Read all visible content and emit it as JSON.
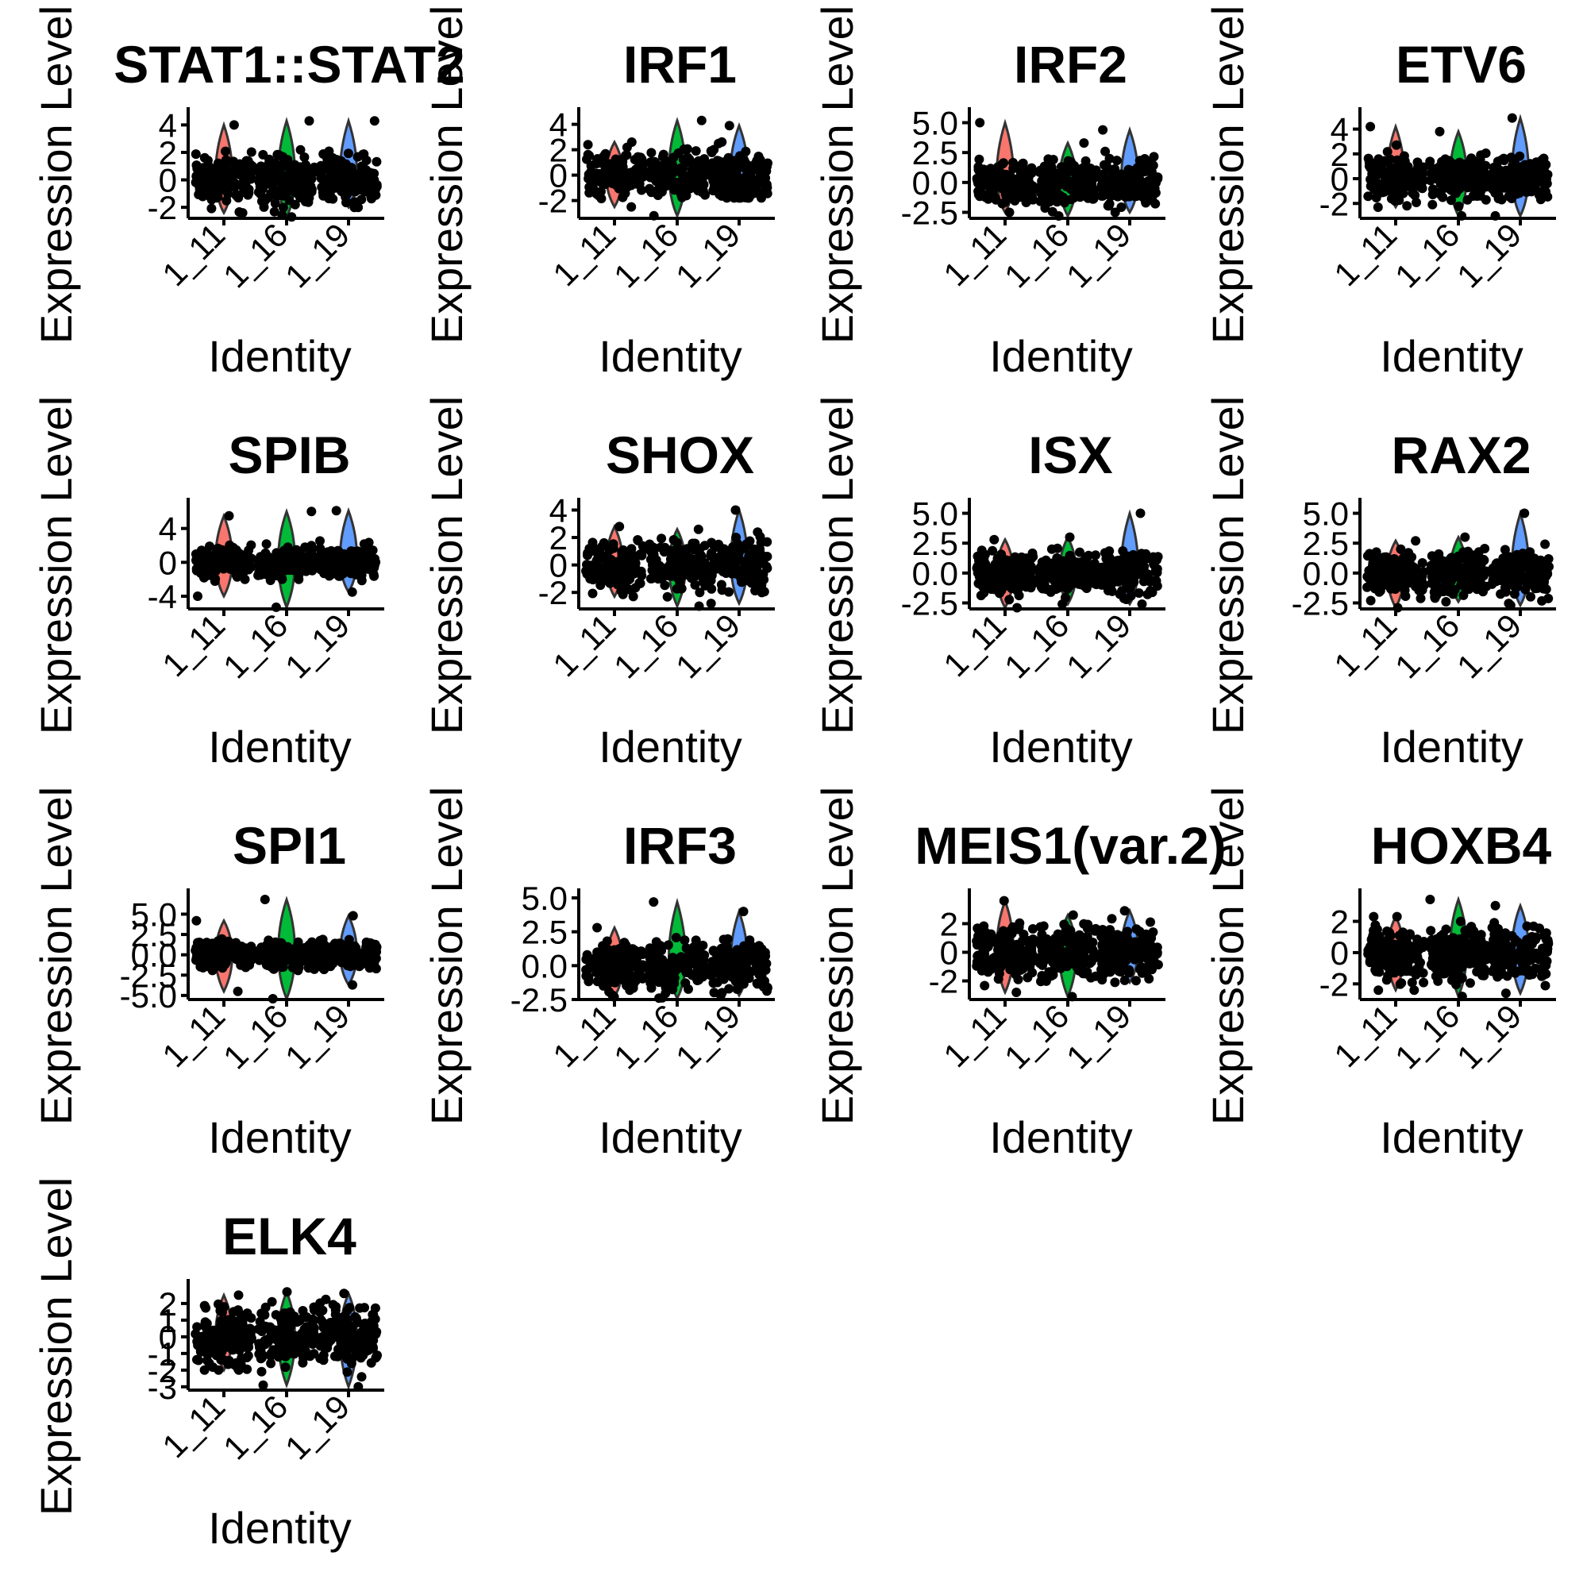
{
  "chart_data": {
    "type": "violin",
    "layout": "grid",
    "n_cols": 4,
    "xlabel": "Identity",
    "ylabel": "Expression Level",
    "categories": [
      "1_11",
      "1_16",
      "1_19"
    ],
    "category_colors": [
      "#F8766D",
      "#00BA38",
      "#619CFF"
    ],
    "grid": false,
    "legend": "none",
    "panels": [
      {
        "title": "STAT1::STAT2",
        "ylim": [
          -2.8,
          4.6
        ],
        "yticks": [
          "-2",
          "0",
          "2",
          "4"
        ],
        "ytick_values": [
          -2,
          0,
          2,
          4
        ],
        "series": [
          {
            "category": "1_11",
            "min": -2.4,
            "max": 4.0
          },
          {
            "category": "1_16",
            "min": -2.7,
            "max": 4.3
          },
          {
            "category": "1_19",
            "min": -2.0,
            "max": 4.3
          }
        ]
      },
      {
        "title": "IRF1",
        "ylim": [
          -3.4,
          4.6
        ],
        "yticks": [
          "-2",
          "0",
          "2",
          "4"
        ],
        "ytick_values": [
          -2,
          0,
          2,
          4
        ],
        "series": [
          {
            "category": "1_11",
            "min": -2.5,
            "max": 2.6
          },
          {
            "category": "1_16",
            "min": -3.2,
            "max": 4.3
          },
          {
            "category": "1_19",
            "min": -1.8,
            "max": 3.9
          }
        ]
      },
      {
        "title": "IRF2",
        "ylim": [
          -3.0,
          5.5
        ],
        "yticks": [
          "-2.5",
          "0.0",
          "2.5",
          "5.0"
        ],
        "ytick_values": [
          -2.5,
          0,
          2.5,
          5.0
        ],
        "series": [
          {
            "category": "1_11",
            "min": -2.5,
            "max": 5.0
          },
          {
            "category": "1_16",
            "min": -2.8,
            "max": 3.3
          },
          {
            "category": "1_19",
            "min": -2.5,
            "max": 4.4
          }
        ]
      },
      {
        "title": "ETV6",
        "ylim": [
          -3.2,
          5.0
        ],
        "yticks": [
          "-2",
          "0",
          "2",
          "4"
        ],
        "ytick_values": [
          -2,
          0,
          2,
          4
        ],
        "series": [
          {
            "category": "1_11",
            "min": -2.3,
            "max": 4.2
          },
          {
            "category": "1_16",
            "min": -3.0,
            "max": 3.8
          },
          {
            "category": "1_19",
            "min": -3.0,
            "max": 4.9
          }
        ]
      },
      {
        "title": "SPIB",
        "ylim": [
          -5.5,
          6.5
        ],
        "yticks": [
          "-4",
          "0",
          "4"
        ],
        "ytick_values": [
          -4,
          0,
          4
        ],
        "series": [
          {
            "category": "1_11",
            "min": -4.0,
            "max": 5.5
          },
          {
            "category": "1_16",
            "min": -5.3,
            "max": 6.0
          },
          {
            "category": "1_19",
            "min": -3.5,
            "max": 6.1
          }
        ]
      },
      {
        "title": "SHOX",
        "ylim": [
          -3.2,
          4.2
        ],
        "yticks": [
          "-2",
          "0",
          "2",
          "4"
        ],
        "ytick_values": [
          -2,
          0,
          2,
          4
        ],
        "series": [
          {
            "category": "1_11",
            "min": -2.3,
            "max": 2.8
          },
          {
            "category": "1_16",
            "min": -3.0,
            "max": 2.6
          },
          {
            "category": "1_19",
            "min": -2.8,
            "max": 4.0
          }
        ]
      },
      {
        "title": "ISX",
        "ylim": [
          -3.0,
          5.5
        ],
        "yticks": [
          "-2.5",
          "0.0",
          "2.5",
          "5.0"
        ],
        "ytick_values": [
          -2.5,
          0,
          2.5,
          5.0
        ],
        "series": [
          {
            "category": "1_11",
            "min": -2.9,
            "max": 2.8
          },
          {
            "category": "1_16",
            "min": -2.6,
            "max": 3.0
          },
          {
            "category": "1_19",
            "min": -2.6,
            "max": 5.0
          }
        ]
      },
      {
        "title": "RAX2",
        "ylim": [
          -3.0,
          5.5
        ],
        "yticks": [
          "-2.5",
          "0.0",
          "2.5",
          "5.0"
        ],
        "ytick_values": [
          -2.5,
          0,
          2.5,
          5.0
        ],
        "series": [
          {
            "category": "1_11",
            "min": -2.9,
            "max": 2.7
          },
          {
            "category": "1_16",
            "min": -2.4,
            "max": 3.0
          },
          {
            "category": "1_19",
            "min": -2.7,
            "max": 5.0
          }
        ]
      },
      {
        "title": "SPI1",
        "ylim": [
          -5.5,
          7.0
        ],
        "yticks": [
          "-5.0",
          "-2.5",
          "0.0",
          "2.5",
          "5.0"
        ],
        "ytick_values": [
          -5,
          -2.5,
          0,
          2.5,
          5
        ],
        "series": [
          {
            "category": "1_11",
            "min": -4.5,
            "max": 4.2
          },
          {
            "category": "1_16",
            "min": -5.4,
            "max": 6.8
          },
          {
            "category": "1_19",
            "min": -3.7,
            "max": 4.8
          }
        ]
      },
      {
        "title": "IRF3",
        "ylim": [
          -2.5,
          5.0
        ],
        "yticks": [
          "-2.5",
          "0.0",
          "2.5",
          "5.0"
        ],
        "ytick_values": [
          -2.5,
          0,
          2.5,
          5.0
        ],
        "series": [
          {
            "category": "1_11",
            "min": -2.3,
            "max": 2.8
          },
          {
            "category": "1_16",
            "min": -2.4,
            "max": 4.7
          },
          {
            "category": "1_19",
            "min": -2.2,
            "max": 4.0
          }
        ]
      },
      {
        "title": "MEIS1(var.2)",
        "ylim": [
          -3.3,
          3.8
        ],
        "yticks": [
          "-2",
          "0",
          "2"
        ],
        "ytick_values": [
          -2,
          0,
          2
        ],
        "series": [
          {
            "category": "1_11",
            "min": -2.8,
            "max": 3.6
          },
          {
            "category": "1_16",
            "min": -3.1,
            "max": 2.6
          },
          {
            "category": "1_19",
            "min": -2.1,
            "max": 2.9
          }
        ]
      },
      {
        "title": "HOXB4",
        "ylim": [
          -3.0,
          3.5
        ],
        "yticks": [
          "-2",
          "0",
          "2"
        ],
        "ytick_values": [
          -2,
          0,
          2
        ],
        "series": [
          {
            "category": "1_11",
            "min": -2.4,
            "max": 2.3
          },
          {
            "category": "1_16",
            "min": -2.8,
            "max": 3.4
          },
          {
            "category": "1_19",
            "min": -2.6,
            "max": 3.0
          }
        ]
      },
      {
        "title": "ELK4",
        "ylim": [
          -3.2,
          2.9
        ],
        "yticks": [
          "-3",
          "-2",
          "-1",
          "0",
          "1",
          "2"
        ],
        "ytick_values": [
          -3,
          -2,
          -1,
          0,
          1,
          2
        ],
        "series": [
          {
            "category": "1_11",
            "min": -2.0,
            "max": 2.5
          },
          {
            "category": "1_16",
            "min": -2.9,
            "max": 2.7
          },
          {
            "category": "1_19",
            "min": -3.0,
            "max": 2.6
          }
        ]
      }
    ]
  }
}
